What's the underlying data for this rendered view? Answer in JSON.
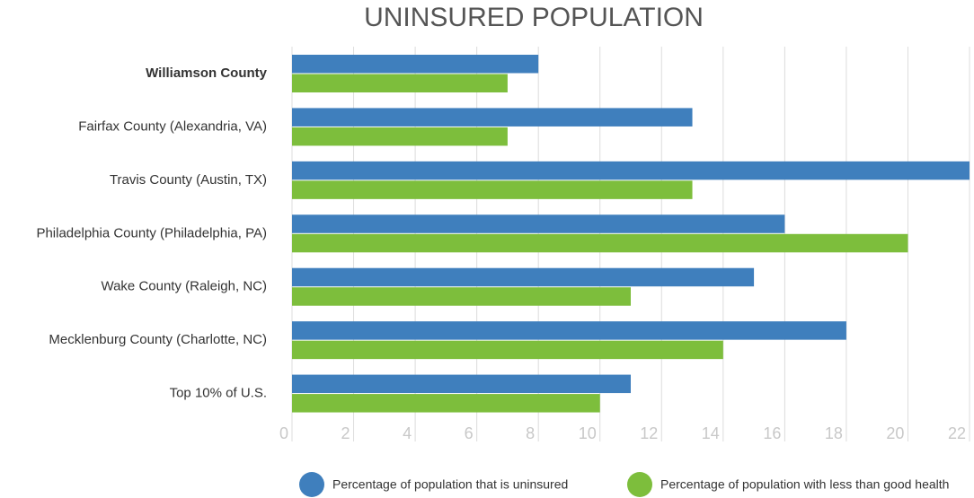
{
  "chart_data": {
    "type": "barh",
    "title": "UNINSURED POPULATION",
    "categories": [
      "Williamson County",
      "Fairfax County (Alexandria, VA)",
      "Travis County (Austin, TX)",
      "Philadelphia County (Philadelphia, PA)",
      "Wake County (Raleigh, NC)",
      "Mecklenburg County (Charlotte, NC)",
      "Top 10% of U.S."
    ],
    "series": [
      {
        "name": "Percentage of population that is uninsured",
        "color": "#3f7fbd",
        "values": [
          8,
          13,
          22,
          16,
          15,
          18,
          11
        ]
      },
      {
        "name": "Percentage of population with less than good health",
        "color": "#7dbe3c",
        "values": [
          7,
          7,
          13,
          20,
          11,
          14,
          10
        ]
      }
    ],
    "xlim": [
      0,
      22
    ],
    "xticks": [
      0,
      2,
      4,
      6,
      8,
      10,
      12,
      14,
      16,
      18,
      20,
      22
    ],
    "grid": true,
    "legend": "bottom"
  }
}
